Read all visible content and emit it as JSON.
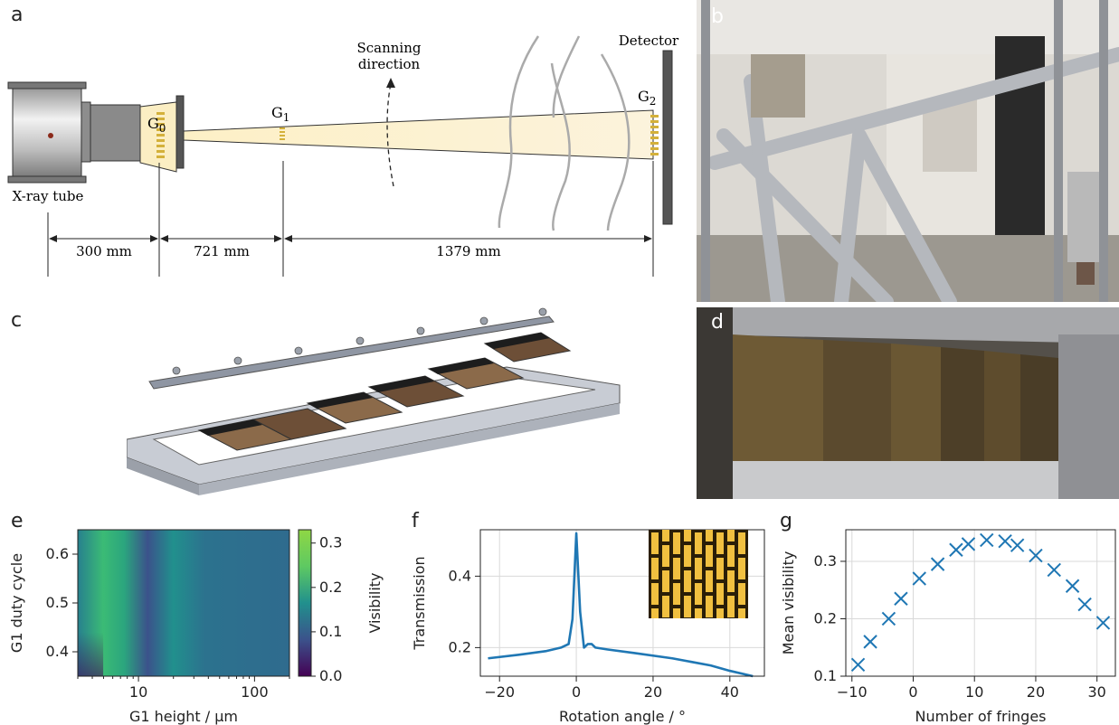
{
  "panels": {
    "a": "a",
    "b": "b",
    "c": "c",
    "d": "d",
    "e": "e",
    "f": "f",
    "g": "g"
  },
  "setup": {
    "labels": {
      "g0": "G",
      "g0_sub": "0",
      "g1": "G",
      "g1_sub": "1",
      "g2": "G",
      "g2_sub": "2",
      "detector": "Detector",
      "xray_tube": "X-ray tube",
      "scanning_line1": "Scanning",
      "scanning_line2": "direction"
    },
    "distances": [
      "300 mm",
      "721 mm",
      "1379 mm"
    ]
  },
  "photo_d": {
    "grating_tags": [
      "",
      "",
      "",
      "",
      "",
      ""
    ]
  },
  "chart_data": [
    {
      "panel": "e",
      "type": "heatmap",
      "xlabel": "G1 height / µm",
      "ylabel": "G1 duty cycle",
      "xscale": "log",
      "xlim": [
        3,
        200
      ],
      "ylim": [
        0.35,
        0.65
      ],
      "x_ticks": [
        10,
        100
      ],
      "y_ticks": [
        0.4,
        0.5,
        0.6
      ],
      "colorbar": {
        "label": "Visibility",
        "range": [
          0.0,
          0.33
        ],
        "ticks": [
          "0.0",
          "0.1",
          "0.2",
          "0.3"
        ],
        "colormap": "viridis"
      },
      "colors": {
        "low": "#440154",
        "mid_low": "#31688e",
        "mid": "#21908d",
        "high": "#35b779",
        "max": "#5ec962"
      }
    },
    {
      "panel": "f",
      "type": "line",
      "xlabel": "Rotation angle / °",
      "ylabel": "Transmission",
      "xlim": [
        -25,
        49
      ],
      "ylim": [
        0.12,
        0.53
      ],
      "x_ticks": [
        -20,
        0,
        20,
        40
      ],
      "y_ticks": [
        0.2,
        0.4
      ],
      "grid": true,
      "series": [
        {
          "name": "",
          "color": "#1f77b4",
          "x": [
            -23,
            -15,
            -8,
            -4,
            -2,
            -1,
            0,
            1,
            2,
            3,
            4,
            5,
            8,
            15,
            25,
            35,
            40,
            46
          ],
          "y": [
            0.17,
            0.18,
            0.19,
            0.2,
            0.21,
            0.28,
            0.52,
            0.3,
            0.2,
            0.21,
            0.21,
            0.2,
            0.195,
            0.185,
            0.17,
            0.15,
            0.135,
            0.12
          ]
        }
      ],
      "inset": "grating micrograph"
    },
    {
      "panel": "g",
      "type": "scatter",
      "xlabel": "Number of fringes",
      "ylabel": "Mean visibility",
      "xlim": [
        -11,
        33
      ],
      "ylim": [
        0.1,
        0.355
      ],
      "x_ticks": [
        -10,
        0,
        10,
        20,
        30
      ],
      "y_ticks": [
        0.1,
        0.2,
        0.3
      ],
      "grid": true,
      "marker": "x",
      "color": "#1f77b4",
      "x": [
        -9,
        -7,
        -4,
        -2,
        1,
        4,
        7,
        9,
        12,
        15,
        17,
        20,
        23,
        26,
        28,
        31
      ],
      "y": [
        0.12,
        0.16,
        0.2,
        0.235,
        0.27,
        0.295,
        0.32,
        0.33,
        0.337,
        0.335,
        0.328,
        0.31,
        0.285,
        0.257,
        0.225,
        0.193
      ]
    }
  ]
}
